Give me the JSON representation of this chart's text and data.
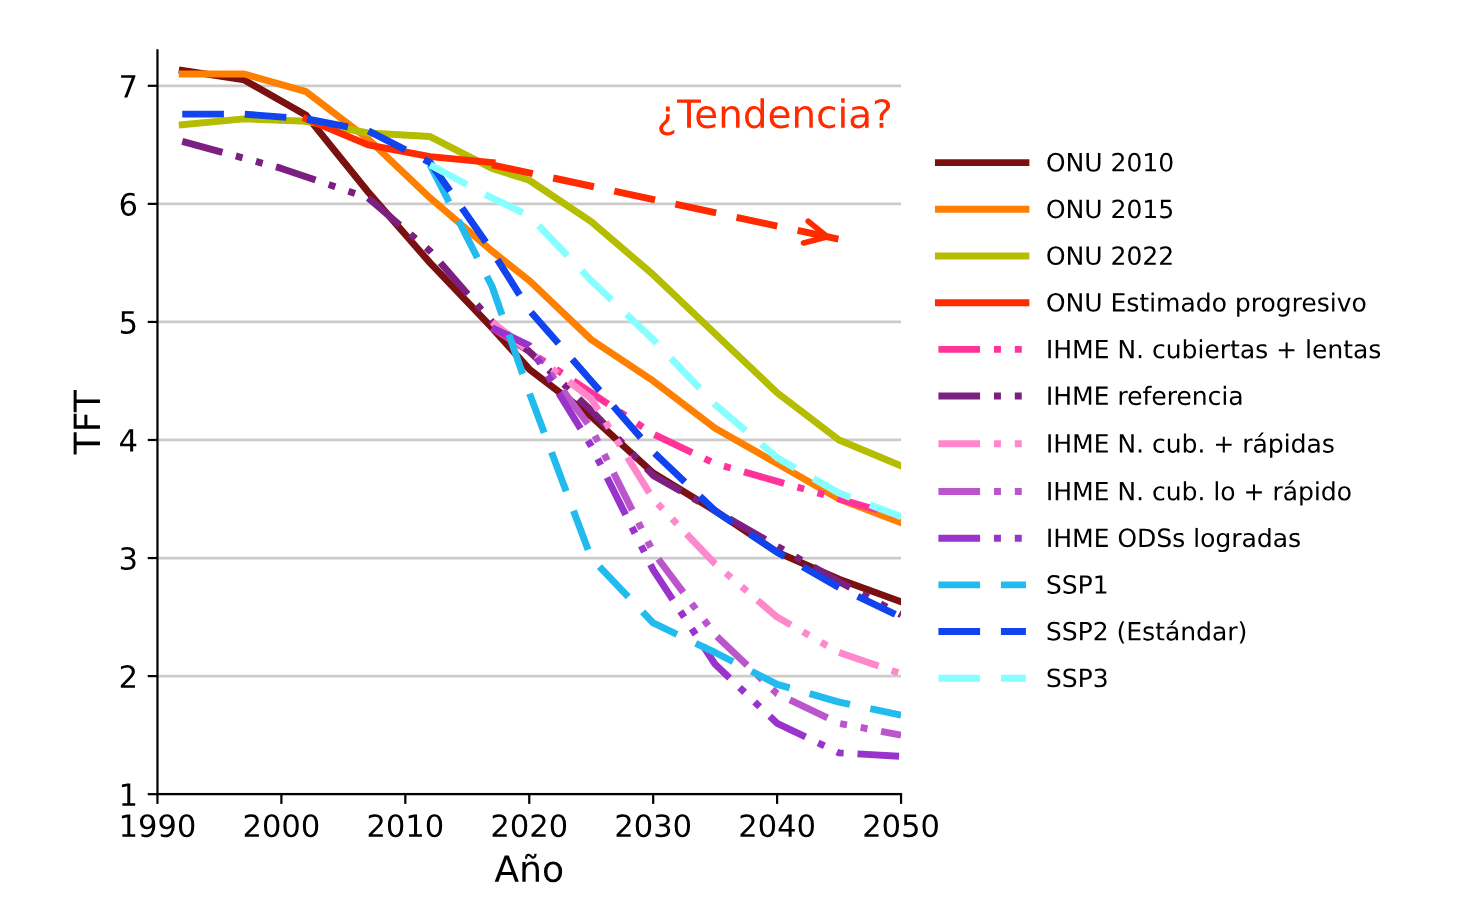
{
  "chart_data": {
    "type": "line",
    "xlabel": "Año",
    "ylabel": "TFT",
    "xlim": [
      1990,
      2050
    ],
    "xticks": [
      1990,
      2000,
      2010,
      2020,
      2030,
      2040,
      2050
    ],
    "ylim": [
      1,
      7.3
    ],
    "yticks": [
      1,
      2,
      3,
      4,
      5,
      6,
      7
    ],
    "grid": "y",
    "legend": "right",
    "marker": "none",
    "annotations": [
      "¿Tendencia?"
    ],
    "series": [
      {
        "name": "ONU 2010",
        "color": "#7b1010",
        "line_style": "solid",
        "x": [
          1992,
          1997,
          2002,
          2007,
          2012,
          2017,
          2020,
          2025,
          2030,
          2035,
          2040,
          2045,
          2050
        ],
        "values": [
          7.13,
          7.05,
          6.75,
          6.1,
          5.5,
          4.95,
          4.6,
          4.2,
          3.72,
          3.4,
          3.05,
          2.82,
          2.63
        ]
      },
      {
        "name": "ONU 2015",
        "color": "#ff8000",
        "line_style": "solid",
        "x": [
          1992,
          1997,
          2002,
          2007,
          2012,
          2017,
          2020,
          2025,
          2030,
          2035,
          2040,
          2045,
          2050
        ],
        "values": [
          7.1,
          7.1,
          6.95,
          6.55,
          6.05,
          5.6,
          5.35,
          4.85,
          4.5,
          4.1,
          3.8,
          3.5,
          3.3
        ]
      },
      {
        "name": "ONU 2022",
        "color": "#b5bd00",
        "line_style": "solid",
        "x": [
          1992,
          1997,
          2002,
          2007,
          2012,
          2017,
          2020,
          2025,
          2030,
          2035,
          2040,
          2045,
          2050
        ],
        "values": [
          6.67,
          6.72,
          6.7,
          6.6,
          6.57,
          6.3,
          6.2,
          5.85,
          5.4,
          4.9,
          4.4,
          4.0,
          3.78
        ]
      },
      {
        "name": "ONU Estimado progresivo",
        "color": "#ff2a00",
        "line_style": "solid",
        "x": [
          2002,
          2007,
          2012,
          2017
        ],
        "values": [
          6.72,
          6.5,
          6.4,
          6.35
        ]
      },
      {
        "color": "#ff2a00",
        "line_style": "dashed",
        "x": [
          2017,
          2045
        ],
        "values": [
          6.33,
          5.7
        ]
      },
      {
        "name": "IHME N. cubiertas + lentas",
        "color": "#ff3399",
        "line_style": "dashdot",
        "x": [
          2017,
          2020,
          2025,
          2030,
          2035,
          2040,
          2045,
          2050
        ],
        "values": [
          4.95,
          4.75,
          4.4,
          4.05,
          3.8,
          3.65,
          3.5,
          3.35
        ]
      },
      {
        "name": "IHME referencia",
        "color": "#7b2080",
        "line_style": "dashdot",
        "x": [
          1992,
          2000,
          2007,
          2012,
          2017,
          2020,
          2025,
          2030,
          2035,
          2040,
          2045,
          2050
        ],
        "values": [
          6.53,
          6.3,
          6.05,
          5.6,
          5.0,
          4.75,
          4.25,
          3.7,
          3.4,
          3.1,
          2.8,
          2.52
        ]
      },
      {
        "name": "IHME N. cub. + rápidas",
        "color": "#ff88cc",
        "line_style": "dashdot",
        "x": [
          2017,
          2020,
          2025,
          2030,
          2035,
          2040,
          2045,
          2050
        ],
        "values": [
          5.0,
          4.75,
          4.35,
          3.5,
          2.95,
          2.5,
          2.2,
          2.02
        ]
      },
      {
        "name": "IHME N. cub. lo + rápido",
        "color": "#bb55cc",
        "line_style": "dashdot",
        "x": [
          2017,
          2020,
          2025,
          2030,
          2035,
          2040,
          2045,
          2050
        ],
        "values": [
          4.95,
          4.8,
          4.1,
          3.05,
          2.35,
          1.85,
          1.6,
          1.5
        ]
      },
      {
        "name": "IHME ODSs logradas",
        "color": "#9933cc",
        "line_style": "dashdot",
        "x": [
          2017,
          2020,
          2025,
          2030,
          2035,
          2040,
          2045,
          2050
        ],
        "values": [
          4.95,
          4.8,
          3.95,
          2.9,
          2.1,
          1.6,
          1.35,
          1.32
        ]
      },
      {
        "name": "SSP1",
        "color": "#22bbee",
        "line_style": "dashed",
        "x": [
          2012,
          2017,
          2020,
          2025,
          2030,
          2035,
          2040,
          2045,
          2050
        ],
        "values": [
          6.33,
          5.3,
          4.4,
          3.0,
          2.45,
          2.2,
          1.93,
          1.78,
          1.67
        ]
      },
      {
        "name": "SSP2 (Estándar)",
        "color": "#1144ee",
        "line_style": "dashed",
        "x": [
          1992,
          1997,
          2002,
          2007,
          2012,
          2017,
          2020,
          2025,
          2030,
          2035,
          2040,
          2045,
          2050
        ],
        "values": [
          6.76,
          6.76,
          6.72,
          6.62,
          6.35,
          5.6,
          5.1,
          4.5,
          3.9,
          3.4,
          3.05,
          2.75,
          2.5
        ]
      },
      {
        "name": "SSP3",
        "color": "#88ffff",
        "line_style": "dashed",
        "x": [
          2012,
          2017,
          2020,
          2025,
          2030,
          2035,
          2040,
          2045,
          2050
        ],
        "values": [
          6.33,
          6.05,
          5.9,
          5.35,
          4.85,
          4.3,
          3.85,
          3.55,
          3.35
        ]
      }
    ]
  }
}
